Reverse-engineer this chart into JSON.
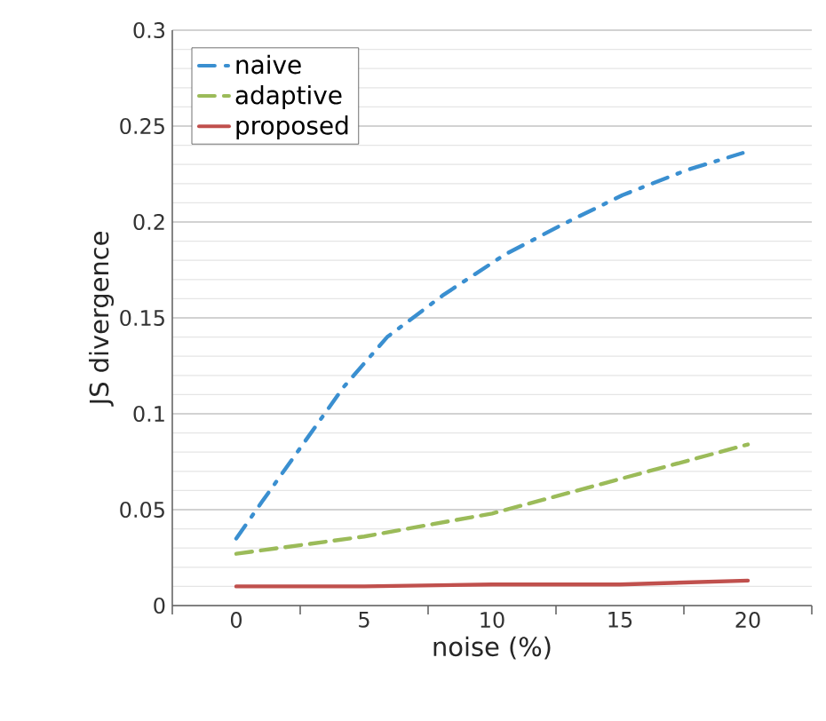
{
  "chart_data": {
    "type": "line",
    "xlabel": "noise (%)",
    "ylabel": "JS divergence",
    "xlim": [
      -2.5,
      22.5
    ],
    "ylim": [
      0,
      0.3
    ],
    "xticks": [
      {
        "value": -2.5,
        "label": null
      },
      0,
      {
        "value": 2.5,
        "label": null
      },
      5,
      {
        "value": 7.5,
        "label": null
      },
      10,
      {
        "value": 12.5,
        "label": null
      },
      15,
      {
        "value": 17.5,
        "label": null
      },
      20,
      {
        "value": 22.5,
        "label": null
      }
    ],
    "yticks": [
      0,
      0.05,
      0.1,
      0.15,
      0.2,
      0.25,
      0.3
    ],
    "grid": "y",
    "legend": "top left",
    "marker": "none",
    "series": [
      {
        "name": "naive",
        "color": "#3a8fd0",
        "line_style": "dashdotted",
        "x": [
          0,
          1,
          2.6,
          4.2,
          5.9,
          8.1,
          10.5,
          12.8,
          15.1,
          17.6,
          19.8
        ],
        "values": [
          0.035,
          0.054,
          0.084,
          0.114,
          0.14,
          0.162,
          0.183,
          0.199,
          0.214,
          0.227,
          0.236
        ]
      },
      {
        "name": "adaptive",
        "color": "#9bbb59",
        "line_style": "dashed",
        "x": [
          0,
          5,
          10,
          15,
          20
        ],
        "values": [
          0.027,
          0.036,
          0.048,
          0.066,
          0.084
        ]
      },
      {
        "name": "proposed",
        "color": "#c0504d",
        "line_style": "solid",
        "x": [
          0,
          5,
          10,
          15,
          20
        ],
        "values": [
          0.01,
          0.01,
          0.011,
          0.011,
          0.013
        ]
      }
    ]
  }
}
